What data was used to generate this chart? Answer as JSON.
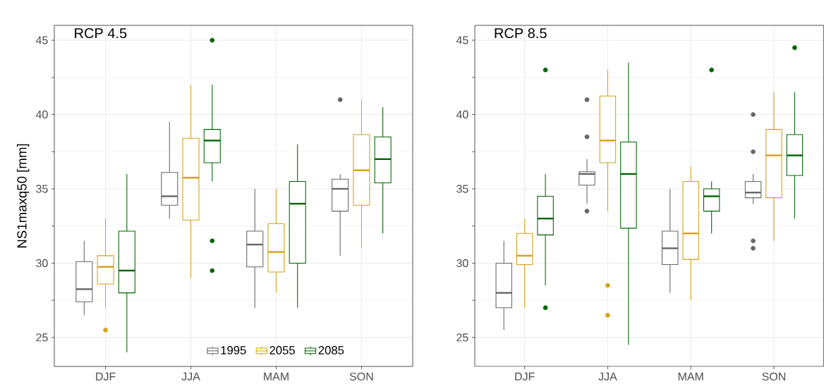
{
  "chart_data": [
    {
      "type": "box",
      "title": "RCP 4.5",
      "ylabel": "NS1maxq50 [mm]",
      "categories": [
        "DJF",
        "JJA",
        "MAM",
        "SON"
      ],
      "ylim": [
        23.05,
        46
      ],
      "yticks": [
        25,
        30,
        35,
        40,
        45
      ],
      "grid": true,
      "legend": "bottom",
      "series": [
        {
          "name": "1995",
          "color": "#666666",
          "boxes": [
            {
              "low": 26.5,
              "q1": 27.4,
              "median": 28.25,
              "q3": 30.1,
              "high": 31.5
            },
            {
              "low": 33,
              "q1": 33.9,
              "median": 34.5,
              "q3": 36.1,
              "high": 39.5
            },
            {
              "low": 27,
              "q1": 29.75,
              "median": 31.25,
              "q3": 32.15,
              "high": 35
            },
            {
              "low": 30.5,
              "q1": 33.5,
              "median": 35,
              "q3": 35.65,
              "high": 36,
              "outliers": [
                41
              ]
            }
          ]
        },
        {
          "name": "2055",
          "color": "#d4a017",
          "boxes": [
            {
              "low": 27,
              "q1": 28.6,
              "median": 29.75,
              "q3": 30.5,
              "high": 33,
              "outliers": [
                25.5
              ]
            },
            {
              "low": 29,
              "q1": 32.9,
              "median": 35.75,
              "q3": 38.4,
              "high": 42
            },
            {
              "low": 28,
              "q1": 29.4,
              "median": 30.75,
              "q3": 32.65,
              "high": 35
            },
            {
              "low": 31,
              "q1": 33.9,
              "median": 36.25,
              "q3": 38.65,
              "high": 41
            }
          ]
        },
        {
          "name": "2085",
          "color": "#006400",
          "boxes": [
            {
              "low": 24,
              "q1": 28,
              "median": 29.5,
              "q3": 32.15,
              "high": 36
            },
            {
              "low": 35.5,
              "q1": 36.75,
              "median": 38.25,
              "q3": 39,
              "high": 42,
              "outliers": [
                45,
                31.5,
                29.5
              ]
            },
            {
              "low": 27,
              "q1": 30,
              "median": 34,
              "q3": 35.5,
              "high": 38
            },
            {
              "low": 32,
              "q1": 35.4,
              "median": 37,
              "q3": 38.5,
              "high": 40.5
            }
          ]
        }
      ]
    },
    {
      "type": "box",
      "title": "RCP 8.5",
      "categories": [
        "DJF",
        "JJA",
        "MAM",
        "SON"
      ],
      "ylim": [
        23.05,
        46
      ],
      "yticks": [
        25,
        30,
        35,
        40,
        45
      ],
      "grid": true,
      "series": [
        {
          "color": "#666666",
          "boxes": [
            {
              "low": 25.5,
              "q1": 27,
              "median": 28,
              "q3": 30,
              "high": 31.5
            },
            {
              "low": 34,
              "q1": 35.25,
              "median": 36,
              "q3": 36.15,
              "high": 37,
              "outliers": [
                41,
                38.5,
                33.5
              ]
            },
            {
              "low": 28,
              "q1": 29.9,
              "median": 31,
              "q3": 32.15,
              "high": 35
            },
            {
              "low": 34,
              "q1": 34.4,
              "median": 34.75,
              "q3": 35.5,
              "high": 36,
              "outliers": [
                40,
                37.5,
                31.5,
                31
              ]
            }
          ]
        },
        {
          "color": "#d4a017",
          "boxes": [
            {
              "low": 27,
              "q1": 29.9,
              "median": 30.5,
              "q3": 32,
              "high": 33
            },
            {
              "low": 33.5,
              "q1": 36.75,
              "median": 38.25,
              "q3": 41.25,
              "high": 43,
              "outliers": [
                28.5,
                26.5
              ]
            },
            {
              "low": 27.5,
              "q1": 30.25,
              "median": 32,
              "q3": 35.5,
              "high": 36.5
            },
            {
              "low": 31.5,
              "q1": 34.4,
              "median": 37.25,
              "q3": 39,
              "high": 41.5
            }
          ]
        },
        {
          "color": "#006400",
          "boxes": [
            {
              "low": 28.5,
              "q1": 31.9,
              "median": 33,
              "q3": 34.5,
              "high": 36,
              "outliers": [
                43,
                27
              ]
            },
            {
              "low": 24.5,
              "q1": 32.35,
              "median": 36,
              "q3": 38.15,
              "high": 43.5
            },
            {
              "low": 32,
              "q1": 33.5,
              "median": 34.5,
              "q3": 35,
              "high": 35.5,
              "outliers": [
                43
              ]
            },
            {
              "low": 33,
              "q1": 35.9,
              "median": 37.25,
              "q3": 38.65,
              "high": 41.5,
              "outliers": [
                44.5
              ]
            }
          ]
        }
      ]
    }
  ]
}
